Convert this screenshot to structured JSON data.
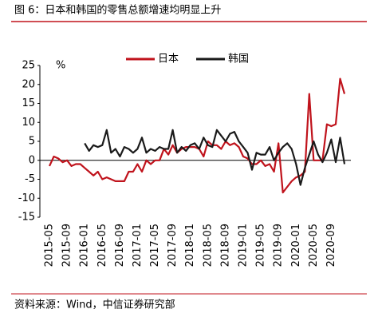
{
  "chart_data": {
    "type": "line",
    "title": "图 6：日本和韩国的零售总额增速均明显上升",
    "y_unit": "%",
    "source": "资料来源：Wind，中信证券研究部",
    "categories": [
      "2015-05",
      null,
      null,
      null,
      "2015-09",
      null,
      null,
      null,
      "2016-01",
      null,
      null,
      null,
      "2016-05",
      null,
      null,
      null,
      "2016-09",
      null,
      null,
      null,
      "2017-01",
      null,
      null,
      null,
      "2017-05",
      null,
      null,
      null,
      "2017-09",
      null,
      null,
      null,
      "2018-01",
      null,
      null,
      null,
      "2018-05",
      null,
      null,
      null,
      "2018-09",
      null,
      null,
      null,
      "2019-01",
      null,
      null,
      null,
      "2019-05",
      null,
      null,
      null,
      "2019-09",
      null,
      null,
      null,
      "2020-01",
      null,
      null,
      null,
      "2020-05",
      null,
      null,
      null,
      "2020-09",
      null,
      null,
      null
    ],
    "series": [
      {
        "name": "日本",
        "color": "#c0131c",
        "values": [
          -1.5,
          1,
          0.5,
          -0.5,
          0,
          -1.5,
          -1,
          -1,
          -2,
          -3,
          -4,
          -3,
          -5,
          -4.5,
          -5,
          -5.5,
          -5.5,
          -5.5,
          -3,
          -3,
          -1,
          -3,
          0,
          -1,
          0,
          0,
          3,
          1.5,
          4,
          2,
          3,
          3.5,
          3.5,
          3.5,
          3,
          1,
          5,
          4,
          4,
          3,
          5,
          4,
          4.5,
          3.5,
          1,
          0.5,
          -1,
          -1,
          0,
          -1.5,
          -1,
          -3,
          4.5,
          -8.5,
          -7,
          -5.5,
          -4.5,
          -4,
          -3,
          17.5,
          0,
          0,
          0,
          9.5,
          9,
          9.5,
          21.5,
          17.5
        ]
      },
      {
        "name": "韩国",
        "color": "#1a1a1a",
        "values": [
          null,
          null,
          null,
          null,
          null,
          null,
          null,
          null,
          4.5,
          2.5,
          4,
          3.5,
          4,
          8,
          2,
          3,
          1,
          3.5,
          3,
          2,
          3,
          6,
          2,
          3,
          2.5,
          3.5,
          3,
          3,
          8,
          2,
          3.5,
          2.5,
          4,
          4.5,
          3,
          6,
          4,
          3.5,
          8,
          6.5,
          5,
          7,
          7.5,
          5,
          3.5,
          2,
          -2.5,
          2,
          1.5,
          1.5,
          3.5,
          0,
          2,
          3.5,
          4.5,
          3,
          -1,
          -6.5,
          -2,
          1.5,
          5,
          1.5,
          -0.5,
          2,
          5.5,
          -0.5,
          6,
          -1
        ]
      }
    ],
    "ylim": [
      -15,
      25
    ],
    "yticks": [
      -15,
      -10,
      -5,
      0,
      5,
      10,
      15,
      20,
      25
    ]
  }
}
